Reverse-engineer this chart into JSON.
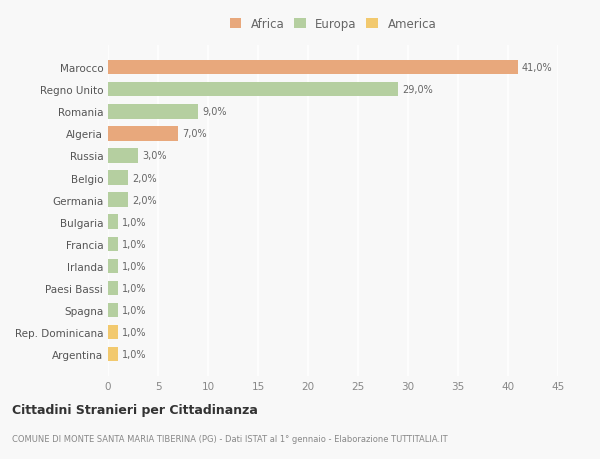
{
  "categories": [
    "Argentina",
    "Rep. Dominicana",
    "Spagna",
    "Paesi Bassi",
    "Irlanda",
    "Francia",
    "Bulgaria",
    "Germania",
    "Belgio",
    "Russia",
    "Algeria",
    "Romania",
    "Regno Unito",
    "Marocco"
  ],
  "values": [
    1.0,
    1.0,
    1.0,
    1.0,
    1.0,
    1.0,
    1.0,
    2.0,
    2.0,
    3.0,
    7.0,
    9.0,
    29.0,
    41.0
  ],
  "colors": [
    "#f2c96e",
    "#f2c96e",
    "#b5cfa0",
    "#b5cfa0",
    "#b5cfa0",
    "#b5cfa0",
    "#b5cfa0",
    "#b5cfa0",
    "#b5cfa0",
    "#b5cfa0",
    "#e8a87c",
    "#b5cfa0",
    "#b5cfa0",
    "#e8a87c"
  ],
  "labels": [
    "1,0%",
    "1,0%",
    "1,0%",
    "1,0%",
    "1,0%",
    "1,0%",
    "1,0%",
    "2,0%",
    "2,0%",
    "3,0%",
    "7,0%",
    "9,0%",
    "29,0%",
    "41,0%"
  ],
  "legend": [
    {
      "label": "Africa",
      "color": "#e8a87c"
    },
    {
      "label": "Europa",
      "color": "#b5cfa0"
    },
    {
      "label": "America",
      "color": "#f2c96e"
    }
  ],
  "title": "Cittadini Stranieri per Cittadinanza",
  "subtitle": "COMUNE DI MONTE SANTA MARIA TIBERINA (PG) - Dati ISTAT al 1° gennaio - Elaborazione TUTTITALIA.IT",
  "xlim": [
    0,
    45
  ],
  "xticks": [
    0,
    5,
    10,
    15,
    20,
    25,
    30,
    35,
    40,
    45
  ],
  "background_color": "#f8f8f8",
  "grid_color": "#ffffff",
  "bar_height": 0.65
}
